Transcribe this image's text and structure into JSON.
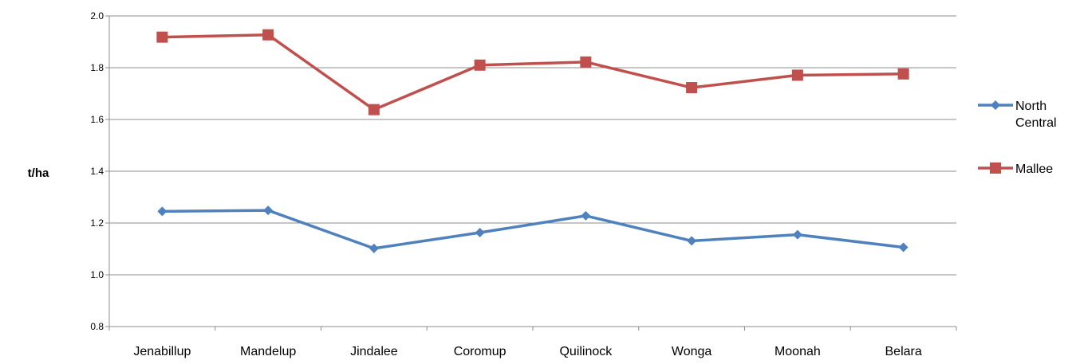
{
  "chart_data": {
    "type": "line",
    "categories": [
      "Jenabillup",
      "Mandelup",
      "Jindalee",
      "Coromup",
      "Quilinock",
      "Wonga",
      "Moonah",
      "Belara"
    ],
    "series": [
      {
        "name": "North Central",
        "color": "#4F81BD",
        "marker": "diamond",
        "values": [
          1.245,
          1.249,
          1.102,
          1.163,
          1.228,
          1.131,
          1.155,
          1.106
        ]
      },
      {
        "name": "Mallee",
        "color": "#C0504D",
        "marker": "square",
        "values": [
          1.918,
          1.927,
          1.638,
          1.81,
          1.822,
          1.723,
          1.771,
          1.776
        ]
      }
    ],
    "ylabel": "t/ha",
    "xlabel": "",
    "title": "",
    "ylim": [
      0.8,
      2.0
    ],
    "yticks": [
      "0.8",
      "1.0",
      "1.2",
      "1.4",
      "1.6",
      "1.8",
      "2.0"
    ],
    "grid": true,
    "legend_position": "right"
  }
}
